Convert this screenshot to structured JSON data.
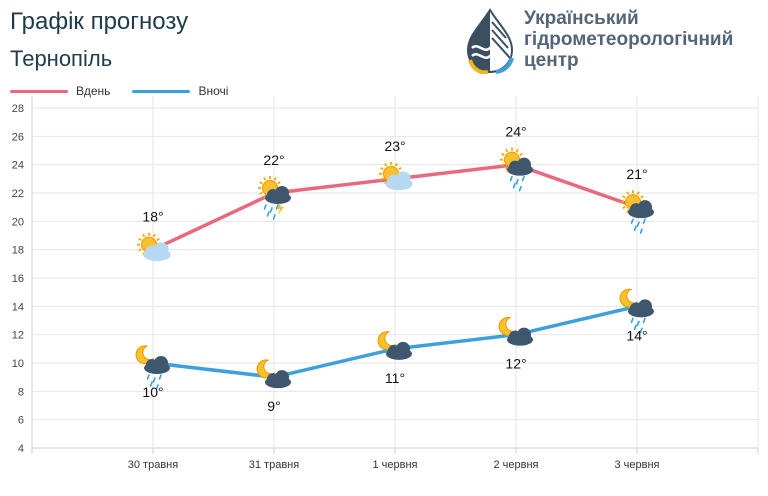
{
  "header": {
    "title": "Графік прогнозу",
    "city": "Тернопіль"
  },
  "logo": {
    "line1": "Український",
    "line2": "гідрометеорологічний",
    "line3": "центр"
  },
  "colors": {
    "day": "#e8697f",
    "night": "#3da0dc",
    "grid": "#e6e6e6"
  },
  "chart_data": {
    "type": "line",
    "categories": [
      "30 травня",
      "31 травня",
      "1 червня",
      "2 червня",
      "3 червня"
    ],
    "series": [
      {
        "name": "Вдень",
        "values": [
          18,
          22,
          23,
          24,
          21
        ],
        "labels": [
          "18°",
          "22°",
          "23°",
          "24°",
          "21°"
        ],
        "icons": [
          "sun-cloud-icon",
          "sun-cloud-storm-icon",
          "sun-cloud-icon",
          "sun-cloud-rain-icon",
          "sun-cloud-rain-icon"
        ]
      },
      {
        "name": "Вночі",
        "values": [
          10,
          9,
          11,
          12,
          14
        ],
        "labels": [
          "10°",
          "9°",
          "11°",
          "12°",
          "14°"
        ],
        "icons": [
          "moon-cloud-rain-icon",
          "moon-cloud-icon",
          "moon-cloud-icon",
          "moon-cloud-icon",
          "moon-cloud-rain-icon"
        ]
      }
    ],
    "ylim": [
      4,
      28
    ],
    "yticks": [
      4,
      6,
      8,
      10,
      12,
      14,
      16,
      18,
      20,
      22,
      24,
      26,
      28
    ],
    "grid": true,
    "legend": "top-left"
  }
}
